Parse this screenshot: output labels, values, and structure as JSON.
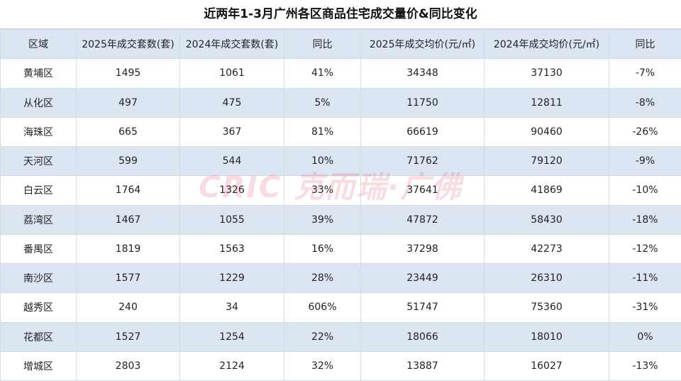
{
  "title": "近两年1-3月广州各区商品住宅成交量价&同比变化",
  "watermark": "CRIC 克而瑞·广佛",
  "table": {
    "header": [
      "区域",
      "2025年成交套数(套)",
      "2024年成交套数(套)",
      "同比",
      "2025年成交均价(元/㎡)",
      "2024年成交均价(元/㎡)",
      "同比"
    ],
    "rows": [
      [
        "黄埔区",
        "1495",
        "1061",
        "41%",
        "34348",
        "37130",
        "-7%"
      ],
      [
        "从化区",
        "497",
        "475",
        "5%",
        "11750",
        "12811",
        "-8%"
      ],
      [
        "海珠区",
        "665",
        "367",
        "81%",
        "66619",
        "90460",
        "-26%"
      ],
      [
        "天河区",
        "599",
        "544",
        "10%",
        "71762",
        "79120",
        "-9%"
      ],
      [
        "白云区",
        "1764",
        "1326",
        "33%",
        "37641",
        "41869",
        "-10%"
      ],
      [
        "荔湾区",
        "1467",
        "1055",
        "39%",
        "47872",
        "58430",
        "-18%"
      ],
      [
        "番禺区",
        "1819",
        "1563",
        "16%",
        "37298",
        "42273",
        "-12%"
      ],
      [
        "南沙区",
        "1577",
        "1229",
        "28%",
        "23449",
        "26310",
        "-11%"
      ],
      [
        "越秀区",
        "240",
        "34",
        "606%",
        "51747",
        "75360",
        "-31%"
      ],
      [
        "花都区",
        "1527",
        "1254",
        "22%",
        "18066",
        "18010",
        "0%"
      ],
      [
        "增城区",
        "2803",
        "2124",
        "32%",
        "13887",
        "16027",
        "-13%"
      ]
    ]
  }
}
